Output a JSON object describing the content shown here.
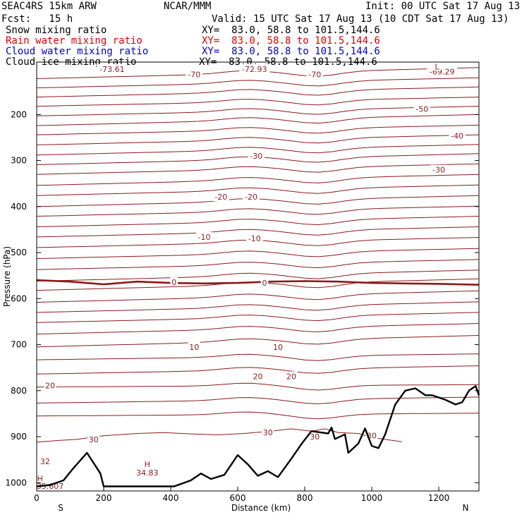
{
  "header": {
    "model": "SEAC4RS 15km ARW",
    "org": "NCAR/MMM",
    "init": "Init: 00 UTC Sat 17 Aug 13",
    "fcst": "Fcst:   15 h",
    "valid": "Valid: 15 UTC Sat 17 Aug 13 (10 CDT Sat 17 Aug 13)"
  },
  "legend": [
    {
      "label": "Snow mixing ratio",
      "xy": "XY=  83.0, 58.8 to 101.5,144.6",
      "color": "#000000"
    },
    {
      "label": "Rain water mixing ratio",
      "xy": "XY=  83.0, 58.8 to 101.5,144.6",
      "color": "#e00000"
    },
    {
      "label": "Cloud water mixing ratio",
      "xy": "XY=  83.0, 58.8 to 101.5,144.6",
      "color": "#0000cc"
    },
    {
      "label": "Cloud ice mixing ratio",
      "xy": "XY=  83.0, 58.8 to 101.5,144.6",
      "color": "#000000"
    }
  ],
  "chart_data": {
    "type": "line",
    "xlabel": "Distance (km)",
    "ylabel": "Pressure (hPa)",
    "xlim": [
      0,
      1320
    ],
    "ylim": [
      1018,
      86
    ],
    "xticks": [
      0,
      200,
      400,
      600,
      800,
      1000,
      1200
    ],
    "yticks": [
      200,
      300,
      400,
      500,
      600,
      700,
      800,
      900,
      1000
    ],
    "x_end_labels": {
      "left": "S",
      "right": "N"
    },
    "contour_color": "#8b1a1a",
    "zero_isotherm": [
      [
        0,
        560
      ],
      [
        100,
        563
      ],
      [
        200,
        569
      ],
      [
        300,
        563
      ],
      [
        400,
        566
      ],
      [
        500,
        567
      ],
      [
        600,
        566
      ],
      [
        700,
        563
      ],
      [
        800,
        562
      ],
      [
        900,
        563
      ],
      [
        1000,
        566
      ],
      [
        1100,
        567
      ],
      [
        1200,
        568
      ],
      [
        1320,
        570
      ]
    ],
    "isotherm_p_left": [
      122,
      142,
      162,
      182,
      203,
      224,
      244,
      266,
      288,
      309,
      330,
      354,
      376,
      400,
      421,
      444,
      466,
      489,
      513,
      537,
      562,
      582,
      608,
      630,
      652,
      677,
      705,
      733,
      764,
      792,
      827,
      855
    ],
    "isotherm_p_right": [
      98,
      120,
      140,
      162,
      182,
      200,
      223,
      244,
      265,
      285,
      307,
      330,
      353,
      376,
      399,
      421,
      444,
      467,
      491,
      515,
      538,
      557,
      583,
      607,
      630,
      654,
      680,
      720,
      746,
      787,
      814,
      849
    ],
    "isotherm_bumps": [
      {
        "x": 620,
        "dp": -6
      },
      {
        "x": 840,
        "dp": 10
      }
    ],
    "line_30": [
      [
        0,
        912
      ],
      [
        70,
        908
      ],
      [
        120,
        906
      ],
      [
        200,
        898
      ],
      [
        300,
        893
      ],
      [
        380,
        891
      ],
      [
        460,
        894
      ],
      [
        540,
        896
      ],
      [
        620,
        893
      ],
      [
        700,
        888
      ],
      [
        760,
        883
      ],
      [
        820,
        888
      ],
      [
        860,
        883
      ],
      [
        900,
        891
      ],
      [
        960,
        893
      ],
      [
        1000,
        902
      ],
      [
        1040,
        906
      ],
      [
        1090,
        911
      ]
    ],
    "contour_labels": [
      {
        "text": "-70",
        "x": 470,
        "p": 113
      },
      {
        "text": "-70",
        "x": 830,
        "p": 113
      },
      {
        "text": "-73.61",
        "x": 225,
        "p": 101
      },
      {
        "text": "-72.93",
        "x": 650,
        "p": 101
      },
      {
        "text": "-69.29",
        "x": 1210,
        "p": 107
      },
      {
        "text": "L",
        "x": 1195,
        "p": 96
      },
      {
        "text": "-50",
        "x": 1150,
        "p": 188
      },
      {
        "text": "-40",
        "x": 1255,
        "p": 246
      },
      {
        "text": "-30",
        "x": 655,
        "p": 290
      },
      {
        "text": "-30",
        "x": 1200,
        "p": 320
      },
      {
        "text": "-20",
        "x": 550,
        "p": 379
      },
      {
        "text": "-20",
        "x": 640,
        "p": 379
      },
      {
        "text": "-10",
        "x": 500,
        "p": 466
      },
      {
        "text": "-10",
        "x": 650,
        "p": 469
      },
      {
        "text": "0",
        "x": 410,
        "p": 564
      },
      {
        "text": "0",
        "x": 680,
        "p": 566
      },
      {
        "text": "10",
        "x": 470,
        "p": 705
      },
      {
        "text": "10",
        "x": 720,
        "p": 705
      },
      {
        "text": "20",
        "x": 40,
        "p": 789
      },
      {
        "text": "20",
        "x": 660,
        "p": 769
      },
      {
        "text": "20",
        "x": 760,
        "p": 769
      },
      {
        "text": "30",
        "x": 170,
        "p": 906
      },
      {
        "text": "30",
        "x": 690,
        "p": 891
      },
      {
        "text": "30",
        "x": 830,
        "p": 900
      },
      {
        "text": "30",
        "x": 1000,
        "p": 898
      },
      {
        "text": "32",
        "x": 25,
        "p": 954
      },
      {
        "text": "H",
        "x": 330,
        "p": 960
      },
      {
        "text": "34.83",
        "x": 330,
        "p": 978
      },
      {
        "text": "H",
        "x": 10,
        "p": 991
      },
      {
        "text": "35.607",
        "x": 40,
        "p": 1007
      }
    ],
    "terrain": [
      [
        0,
        1008
      ],
      [
        40,
        1005
      ],
      [
        80,
        995
      ],
      [
        110,
        968
      ],
      [
        150,
        935
      ],
      [
        190,
        980
      ],
      [
        200,
        1008
      ],
      [
        300,
        1008
      ],
      [
        410,
        1008
      ],
      [
        460,
        995
      ],
      [
        490,
        980
      ],
      [
        520,
        992
      ],
      [
        560,
        983
      ],
      [
        600,
        940
      ],
      [
        630,
        960
      ],
      [
        660,
        985
      ],
      [
        690,
        975
      ],
      [
        720,
        988
      ],
      [
        760,
        948
      ],
      [
        790,
        916
      ],
      [
        820,
        888
      ],
      [
        870,
        893
      ],
      [
        880,
        880
      ],
      [
        890,
        905
      ],
      [
        920,
        895
      ],
      [
        930,
        935
      ],
      [
        960,
        915
      ],
      [
        980,
        882
      ],
      [
        1000,
        920
      ],
      [
        1020,
        925
      ],
      [
        1040,
        895
      ],
      [
        1070,
        830
      ],
      [
        1100,
        800
      ],
      [
        1130,
        795
      ],
      [
        1160,
        810
      ],
      [
        1180,
        810
      ],
      [
        1220,
        820
      ],
      [
        1250,
        830
      ],
      [
        1270,
        825
      ],
      [
        1290,
        800
      ],
      [
        1310,
        790
      ],
      [
        1320,
        810
      ]
    ]
  }
}
